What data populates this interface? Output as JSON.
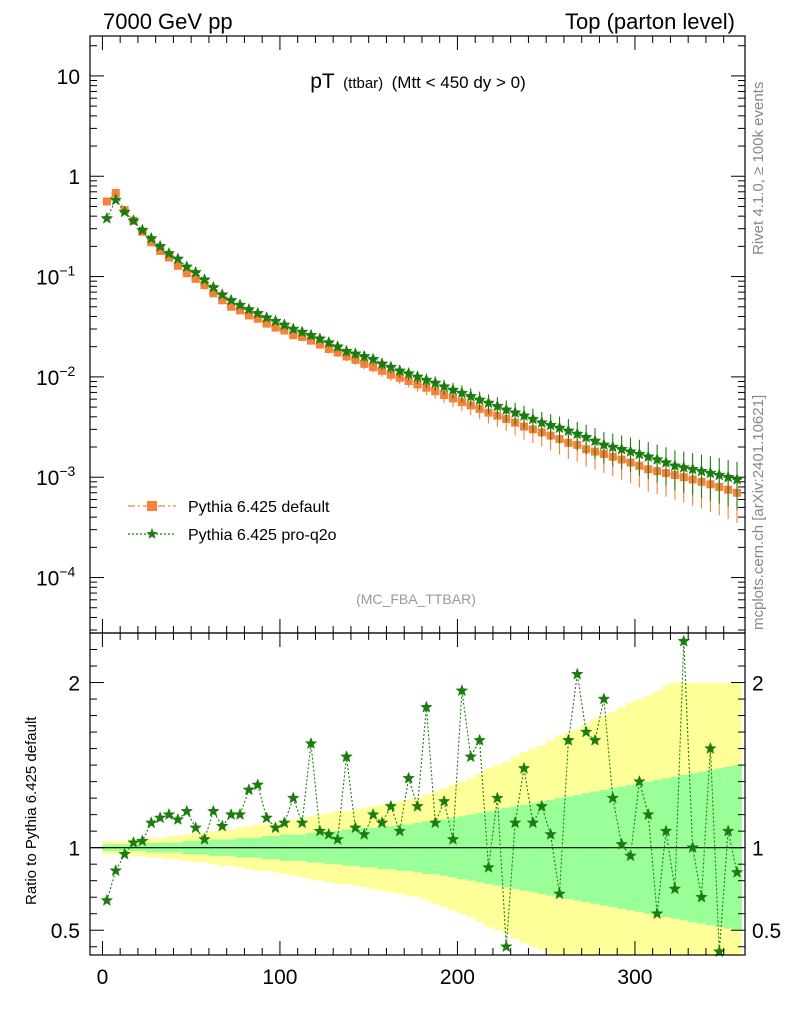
{
  "header": {
    "left": "7000 GeV pp",
    "right": "Top (parton level)"
  },
  "side_labels": {
    "rivet": "Rivet 4.1.0, ≥ 100k events",
    "mcplots": "mcplots.cern.ch [arXiv:2401.10621]"
  },
  "colors": {
    "default": "#f5813a",
    "proq2o": "#1c7d0f",
    "band_outer": "#ffff99",
    "band_inner": "#99ff99",
    "frame": "#000000",
    "watermark": "#999999"
  },
  "chart_data": [
    {
      "type": "scatter",
      "panel": "main",
      "title": "pT",
      "title_small": "(ttbar)",
      "title_cut": "(Mtt < 450 dy > 0)",
      "watermark": "(MC_FBA_TTBAR)",
      "ylabel": "",
      "y_scale": "log",
      "xlim": [
        -7,
        362
      ],
      "ylim": [
        2.8e-05,
        25
      ],
      "y_ticks": [
        {
          "value": 10,
          "label": "10"
        },
        {
          "value": 1,
          "label": "1"
        },
        {
          "value": 0.1,
          "label": "10",
          "exp": "−1"
        },
        {
          "value": 0.01,
          "label": "10",
          "exp": "−2"
        },
        {
          "value": 0.001,
          "label": "10",
          "exp": "−3"
        },
        {
          "value": 0.0001,
          "label": "10",
          "exp": "−4"
        }
      ],
      "legend": {
        "position": "bottom-left",
        "entries": [
          {
            "key": "default",
            "label": "Pythia 6.425 default"
          },
          {
            "key": "proq2o",
            "label": "Pythia 6.425 pro-q2o"
          }
        ]
      },
      "x": [
        2.5,
        7.5,
        12.5,
        17.5,
        22.5,
        27.5,
        32.5,
        37.5,
        42.5,
        47.5,
        52.5,
        57.5,
        62.5,
        67.5,
        72.5,
        77.5,
        82.5,
        87.5,
        92.5,
        97.5,
        102.5,
        107.5,
        112.5,
        117.5,
        122.5,
        127.5,
        132.5,
        137.5,
        142.5,
        147.5,
        152.5,
        157.5,
        162.5,
        167.5,
        172.5,
        177.5,
        182.5,
        187.5,
        192.5,
        197.5,
        202.5,
        207.5,
        212.5,
        217.5,
        222.5,
        227.5,
        232.5,
        237.5,
        242.5,
        247.5,
        252.5,
        257.5,
        262.5,
        267.5,
        272.5,
        277.5,
        282.5,
        287.5,
        292.5,
        297.5,
        302.5,
        307.5,
        312.5,
        317.5,
        322.5,
        327.5,
        332.5,
        337.5,
        342.5,
        347.5,
        352.5,
        357.5
      ],
      "series": [
        {
          "key": "default",
          "name": "Pythia 6.425 default",
          "values": [
            0.56,
            0.68,
            0.46,
            0.36,
            0.28,
            0.22,
            0.18,
            0.155,
            0.128,
            0.108,
            0.095,
            0.082,
            0.068,
            0.058,
            0.05,
            0.046,
            0.041,
            0.038,
            0.034,
            0.031,
            0.029,
            0.026,
            0.025,
            0.023,
            0.021,
            0.019,
            0.0175,
            0.016,
            0.0148,
            0.0135,
            0.0125,
            0.0115,
            0.0105,
            0.0098,
            0.0091,
            0.0084,
            0.0078,
            0.0072,
            0.0066,
            0.0061,
            0.0056,
            0.0052,
            0.0048,
            0.0044,
            0.0041,
            0.0038,
            0.0035,
            0.0032,
            0.003,
            0.0028,
            0.0026,
            0.0024,
            0.0022,
            0.0021,
            0.0019,
            0.0018,
            0.0017,
            0.0016,
            0.0015,
            0.0014,
            0.0013,
            0.0012,
            0.00115,
            0.0011,
            0.00105,
            0.001,
            0.00095,
            0.0009,
            0.00085,
            0.0008,
            0.00075,
            0.0007
          ],
          "rel_err": [
            0.02,
            0.02,
            0.02,
            0.02,
            0.02,
            0.03,
            0.03,
            0.03,
            0.03,
            0.04,
            0.04,
            0.04,
            0.05,
            0.05,
            0.05,
            0.06,
            0.06,
            0.06,
            0.07,
            0.07,
            0.08,
            0.08,
            0.08,
            0.09,
            0.09,
            0.1,
            0.1,
            0.11,
            0.11,
            0.12,
            0.12,
            0.13,
            0.13,
            0.14,
            0.14,
            0.15,
            0.16,
            0.16,
            0.17,
            0.18,
            0.19,
            0.2,
            0.21,
            0.22,
            0.23,
            0.24,
            0.25,
            0.26,
            0.27,
            0.28,
            0.29,
            0.3,
            0.31,
            0.32,
            0.33,
            0.34,
            0.35,
            0.36,
            0.37,
            0.38,
            0.39,
            0.4,
            0.41,
            0.42,
            0.43,
            0.44,
            0.45,
            0.46,
            0.47,
            0.48,
            0.49,
            0.5
          ]
        },
        {
          "key": "proq2o",
          "name": "Pythia 6.425 pro-q2o",
          "values": [
            0.38,
            0.58,
            0.44,
            0.36,
            0.29,
            0.24,
            0.2,
            0.17,
            0.15,
            0.125,
            0.11,
            0.093,
            0.078,
            0.066,
            0.058,
            0.052,
            0.047,
            0.043,
            0.039,
            0.036,
            0.033,
            0.03,
            0.028,
            0.026,
            0.024,
            0.022,
            0.02,
            0.018,
            0.017,
            0.016,
            0.015,
            0.0135,
            0.0125,
            0.0115,
            0.0108,
            0.01,
            0.0093,
            0.0087,
            0.008,
            0.0074,
            0.0069,
            0.0064,
            0.0059,
            0.0055,
            0.0051,
            0.0047,
            0.0044,
            0.0041,
            0.0038,
            0.0035,
            0.0033,
            0.0031,
            0.0029,
            0.0027,
            0.0025,
            0.0023,
            0.0021,
            0.002,
            0.0019,
            0.0018,
            0.0017,
            0.0016,
            0.0015,
            0.0014,
            0.0013,
            0.00125,
            0.0012,
            0.00115,
            0.0011,
            0.00105,
            0.001,
            0.00095
          ],
          "rel_err": [
            0.02,
            0.02,
            0.02,
            0.02,
            0.02,
            0.03,
            0.03,
            0.03,
            0.03,
            0.04,
            0.04,
            0.04,
            0.05,
            0.05,
            0.05,
            0.06,
            0.06,
            0.06,
            0.07,
            0.07,
            0.08,
            0.08,
            0.08,
            0.09,
            0.09,
            0.1,
            0.1,
            0.11,
            0.11,
            0.12,
            0.12,
            0.13,
            0.13,
            0.14,
            0.14,
            0.15,
            0.16,
            0.16,
            0.17,
            0.18,
            0.19,
            0.2,
            0.21,
            0.22,
            0.23,
            0.24,
            0.25,
            0.26,
            0.27,
            0.28,
            0.29,
            0.3,
            0.31,
            0.32,
            0.33,
            0.34,
            0.35,
            0.36,
            0.37,
            0.38,
            0.39,
            0.4,
            0.41,
            0.42,
            0.43,
            0.44,
            0.45,
            0.46,
            0.47,
            0.48,
            0.49,
            0.5
          ]
        }
      ]
    },
    {
      "type": "line",
      "panel": "ratio",
      "ylabel": "Ratio to Pythia 6.425 default",
      "y_scale": "linear",
      "xlim": [
        -7,
        362
      ],
      "ylim": [
        0.35,
        2.3
      ],
      "y_ticks": [
        {
          "value": 0.5,
          "label": "0.5"
        },
        {
          "value": 1,
          "label": "1"
        },
        {
          "value": 2,
          "label": "2"
        }
      ],
      "x_ticks": [
        {
          "value": 0,
          "label": "0"
        },
        {
          "value": 100,
          "label": "100"
        },
        {
          "value": 200,
          "label": "200"
        },
        {
          "value": 300,
          "label": "300"
        }
      ],
      "reference_line": 1,
      "band_inner_halfwidth": [
        0.02,
        0.02,
        0.02,
        0.02,
        0.02,
        0.03,
        0.03,
        0.03,
        0.03,
        0.04,
        0.04,
        0.04,
        0.05,
        0.05,
        0.05,
        0.06,
        0.06,
        0.06,
        0.07,
        0.07,
        0.08,
        0.08,
        0.08,
        0.09,
        0.09,
        0.1,
        0.1,
        0.11,
        0.11,
        0.12,
        0.12,
        0.13,
        0.13,
        0.14,
        0.14,
        0.15,
        0.16,
        0.16,
        0.17,
        0.18,
        0.19,
        0.2,
        0.21,
        0.22,
        0.23,
        0.24,
        0.25,
        0.26,
        0.27,
        0.28,
        0.29,
        0.3,
        0.31,
        0.32,
        0.33,
        0.34,
        0.35,
        0.36,
        0.37,
        0.38,
        0.39,
        0.4,
        0.41,
        0.42,
        0.43,
        0.44,
        0.45,
        0.46,
        0.47,
        0.48,
        0.49,
        0.5
      ],
      "band_outer_halfwidth": [
        0.04,
        0.04,
        0.04,
        0.05,
        0.05,
        0.06,
        0.06,
        0.07,
        0.07,
        0.08,
        0.09,
        0.09,
        0.1,
        0.11,
        0.11,
        0.12,
        0.13,
        0.14,
        0.14,
        0.15,
        0.16,
        0.17,
        0.18,
        0.19,
        0.2,
        0.21,
        0.22,
        0.22,
        0.23,
        0.24,
        0.25,
        0.26,
        0.27,
        0.28,
        0.29,
        0.3,
        0.32,
        0.34,
        0.36,
        0.38,
        0.4,
        0.42,
        0.45,
        0.48,
        0.5,
        0.52,
        0.55,
        0.58,
        0.6,
        0.62,
        0.65,
        0.68,
        0.7,
        0.72,
        0.75,
        0.78,
        0.8,
        0.82,
        0.85,
        0.88,
        0.9,
        0.92,
        0.95,
        0.98,
        1.0,
        1.0,
        1.0,
        1.0,
        1.0,
        1.0,
        1.0,
        1.0
      ],
      "series": [
        {
          "key": "proq2o",
          "name": "Pythia 6.425 pro-q2o",
          "values": [
            0.68,
            0.86,
            0.96,
            1.03,
            1.04,
            1.15,
            1.18,
            1.2,
            1.17,
            1.22,
            1.12,
            1.05,
            1.22,
            1.13,
            1.2,
            1.2,
            1.35,
            1.38,
            1.18,
            1.12,
            1.15,
            1.3,
            1.15,
            1.63,
            1.1,
            1.08,
            1.05,
            1.55,
            1.12,
            1.08,
            1.2,
            1.15,
            1.25,
            1.1,
            1.42,
            1.25,
            1.85,
            1.15,
            1.28,
            1.05,
            1.95,
            1.55,
            1.65,
            0.88,
            1.3,
            0.4,
            1.15,
            1.48,
            1.15,
            1.25,
            1.08,
            0.72,
            1.65,
            2.05,
            1.7,
            1.65,
            1.9,
            1.3,
            1.02,
            0.95,
            1.4,
            1.2,
            0.6,
            1.1,
            0.75,
            2.25,
            1.0,
            0.7,
            1.6,
            0.37,
            1.1,
            0.85
          ]
        }
      ]
    }
  ]
}
